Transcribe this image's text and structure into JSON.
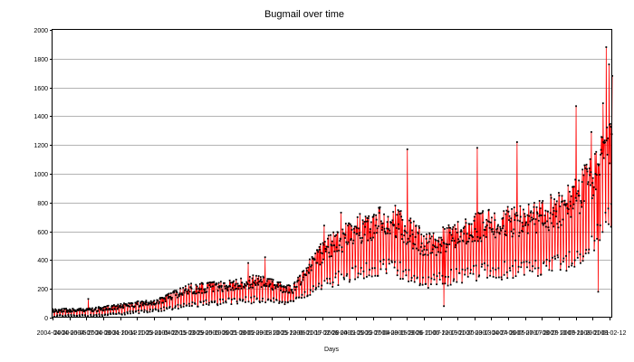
{
  "chart_data": {
    "type": "line",
    "title": "Bugmail over time",
    "xlabel": "Days",
    "ylabel": "",
    "ylim": [
      0,
      2000
    ],
    "y_ticks": [
      0,
      200,
      400,
      600,
      800,
      1000,
      1200,
      1400,
      1600,
      1800,
      2000
    ],
    "x_range": [
      "2004-04-20",
      "2008-02-12"
    ],
    "x_tick_interval_days": 42,
    "x_ticks": [
      "2004-04-20",
      "2004-06-01",
      "2004-07-13",
      "2004-08-24",
      "2004-10-05",
      "2004-11-16",
      "2004-12-28",
      "2005-02-08",
      "2005-03-22",
      "2005-05-03",
      "2005-06-14",
      "2005-07-26",
      "2005-09-06",
      "2005-10-18",
      "2005-11-29",
      "2006-01-10",
      "2006-02-21",
      "2006-04-04",
      "2006-05-16",
      "2006-06-27",
      "2006-08-08",
      "2006-09-19",
      "2006-10-31",
      "2006-12-12",
      "2007-01-23",
      "2007-03-06",
      "2007-04-17",
      "2007-05-29",
      "2007-07-10",
      "2007-08-21",
      "2007-10-02",
      "2007-11-13",
      "2007-12-25",
      "2008-02-05"
    ],
    "x_tick_labels_shown": [
      "2004-04-20",
      "2004-06-05",
      "2004-07-20",
      "2004-08-31",
      "2004-10-12",
      "2004-11-23",
      "2005-01-04",
      "2005-02-15",
      "2005-03-29",
      "2005-05-10",
      "2005-06-21",
      "2005-08-02",
      "2005-09-13",
      "2005-10-25",
      "2005-12-06",
      "2006-01-17",
      "2006-02-28",
      "2006-04-11",
      "2006-05-23",
      "2006-07-04",
      "2006-08-15",
      "2006-09-26",
      "2006-11-07",
      "2006-12-19",
      "2007-01-30",
      "2007-03-13",
      "2007-04-24",
      "2007-06-05",
      "2007-07-17",
      "2007-08-28",
      "2007-10-09",
      "2007-11-20",
      "2008-01-01",
      "2008-02-12"
    ],
    "grid": "horizontal",
    "legend": "none",
    "colors": {
      "line": "#ff0000",
      "marker": "#000000",
      "grid": "#b3b3b3"
    },
    "series_envelope": {
      "description_values": "approximate daily trend (date, typical low, typical high)",
      "points": [
        [
          "2004-04-20",
          5,
          60
        ],
        [
          "2004-08-01",
          5,
          70
        ],
        [
          "2004-10-12",
          20,
          100
        ],
        [
          "2005-01-04",
          40,
          130
        ],
        [
          "2005-03-29",
          70,
          240
        ],
        [
          "2005-06-21",
          90,
          260
        ],
        [
          "2005-09-13",
          100,
          300
        ],
        [
          "2005-12-06",
          90,
          220
        ],
        [
          "2006-01-17",
          150,
          400
        ],
        [
          "2006-02-28",
          200,
          560
        ],
        [
          "2006-05-23",
          260,
          720
        ],
        [
          "2006-08-15",
          290,
          800
        ],
        [
          "2006-11-07",
          190,
          600
        ],
        [
          "2007-01-30",
          240,
          680
        ],
        [
          "2007-04-24",
          260,
          780
        ],
        [
          "2007-07-17",
          270,
          800
        ],
        [
          "2007-10-09",
          300,
          880
        ],
        [
          "2007-12-15",
          380,
          1100
        ],
        [
          "2008-02-12",
          600,
          1400
        ]
      ],
      "spikes": [
        [
          "2004-07-18",
          130
        ],
        [
          "2005-08-20",
          380
        ],
        [
          "2005-10-01",
          420
        ],
        [
          "2006-02-25",
          640
        ],
        [
          "2006-04-08",
          730
        ],
        [
          "2006-09-20",
          1170
        ],
        [
          "2006-12-20",
          80
        ],
        [
          "2007-03-13",
          1180
        ],
        [
          "2007-06-20",
          1220
        ],
        [
          "2007-11-14",
          1470
        ],
        [
          "2007-12-22",
          1290
        ],
        [
          "2008-01-08",
          180
        ],
        [
          "2008-01-20",
          1490
        ],
        [
          "2008-01-28",
          1880
        ],
        [
          "2008-02-04",
          1760
        ],
        [
          "2008-02-12",
          1680
        ]
      ]
    }
  }
}
